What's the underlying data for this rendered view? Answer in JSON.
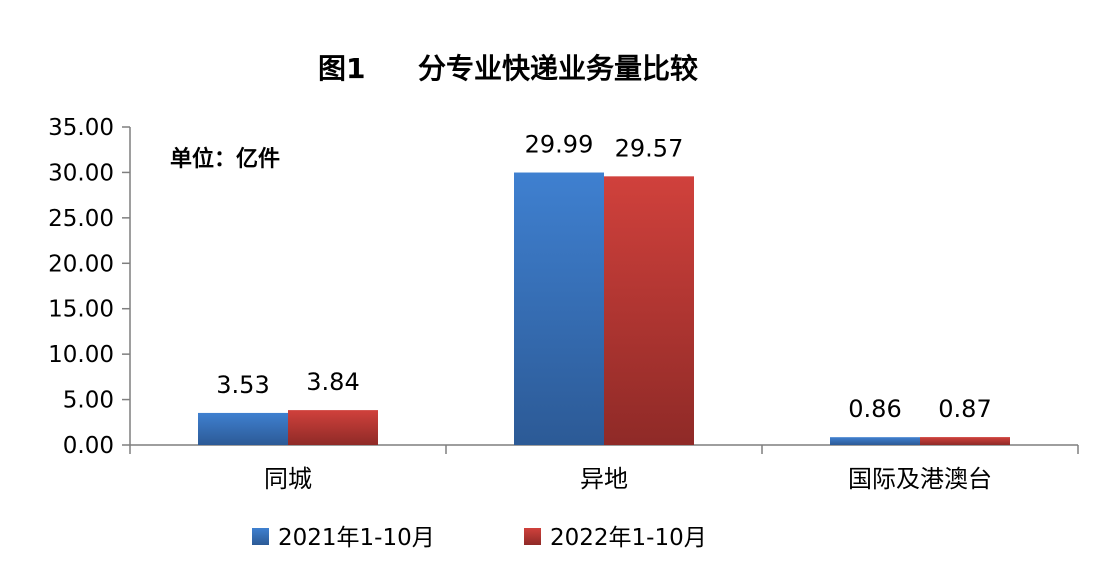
{
  "chart_data": {
    "type": "bar",
    "title_prefix": "图1",
    "title": "分专业快递业务量比较",
    "unit_label": "单位：亿件",
    "categories": [
      "同城",
      "异地",
      "国际及港澳台"
    ],
    "series": [
      {
        "name": "2021年1-10月",
        "values": [
          3.53,
          29.99,
          0.86
        ],
        "color": "#3a78c6"
      },
      {
        "name": "2022年1-10月",
        "values": [
          3.84,
          29.57,
          0.87
        ],
        "color": "#c83b37"
      }
    ],
    "value_labels": [
      [
        "3.53",
        "29.99",
        "0.86"
      ],
      [
        "3.84",
        "29.57",
        "0.87"
      ]
    ],
    "ylim": [
      0,
      35
    ],
    "ytick_values": [
      0,
      5,
      10,
      15,
      20,
      25,
      30,
      35
    ],
    "ytick_labels": [
      "0.00",
      "5.00",
      "10.00",
      "15.00",
      "20.00",
      "25.00",
      "30.00",
      "35.00"
    ],
    "grid": false,
    "legend_position": "bottom"
  }
}
